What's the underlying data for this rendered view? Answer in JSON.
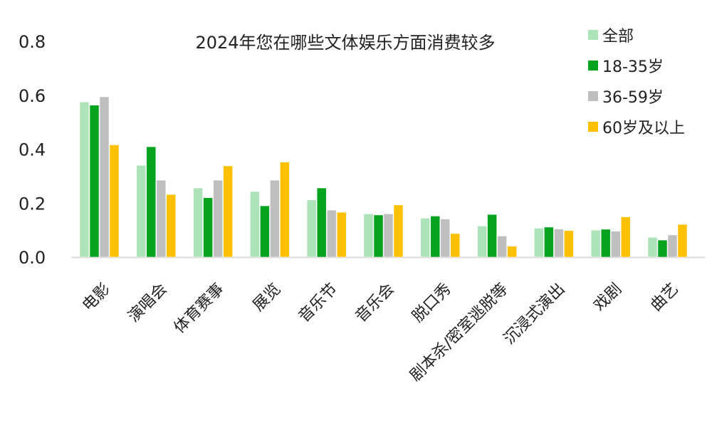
{
  "chart_data": {
    "type": "bar",
    "title": "2024年您在哪些文体娱乐方面消费较多",
    "xlabel": "",
    "ylabel": "",
    "ylim": [
      0,
      0.8
    ],
    "yticks": [
      "0.0",
      "0.2",
      "0.4",
      "0.6",
      "0.8"
    ],
    "grid": false,
    "legend": "top-right",
    "categories": [
      "电影",
      "演唱会",
      "体育赛事",
      "展览",
      "音乐节",
      "音乐会",
      "脱口秀",
      "剧本杀/密室逃脱等",
      "沉浸式演出",
      "戏剧",
      "曲艺"
    ],
    "series": [
      {
        "name": "全部",
        "color": "#ade3b8",
        "values": [
          0.575,
          0.34,
          0.256,
          0.243,
          0.212,
          0.16,
          0.144,
          0.115,
          0.107,
          0.1,
          0.073
        ]
      },
      {
        "name": "18-35岁",
        "color": "#05a31d",
        "values": [
          0.563,
          0.409,
          0.22,
          0.19,
          0.256,
          0.156,
          0.152,
          0.158,
          0.111,
          0.103,
          0.063
        ]
      },
      {
        "name": "36-59岁",
        "color": "#bfbfbf",
        "values": [
          0.594,
          0.285,
          0.285,
          0.285,
          0.174,
          0.16,
          0.141,
          0.078,
          0.104,
          0.096,
          0.082
        ]
      },
      {
        "name": "60岁及以上",
        "color": "#ffc000",
        "values": [
          0.416,
          0.232,
          0.338,
          0.352,
          0.166,
          0.193,
          0.087,
          0.04,
          0.098,
          0.149,
          0.121
        ]
      }
    ]
  }
}
